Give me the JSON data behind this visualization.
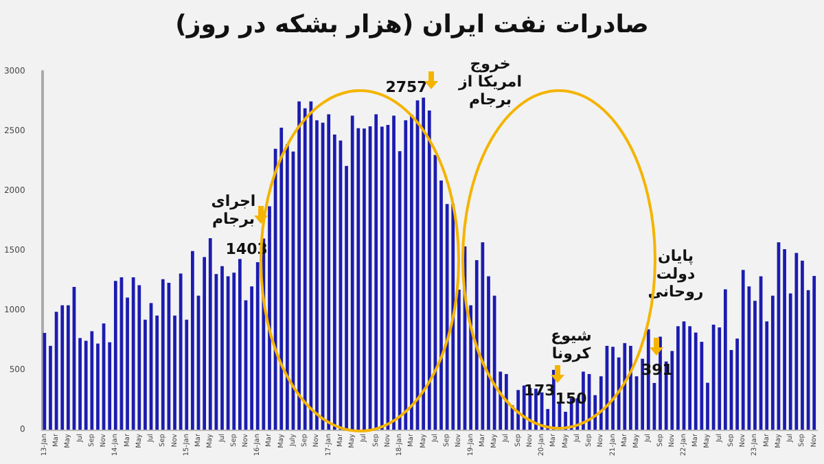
{
  "chart_data": {
    "type": "bar",
    "title": "صادرات نفت ایران (هزار بشکه در روز)",
    "categories": [
      "13-Jan",
      null,
      "Mar",
      null,
      "May",
      null,
      "Jul",
      null,
      "Sep",
      null,
      "Nov",
      null,
      "14-Jan",
      null,
      "Mar",
      null,
      "May",
      null,
      "Jul",
      null,
      "Sep",
      null,
      "Nov",
      null,
      "15-Jan",
      null,
      "Mar",
      null,
      "May",
      null,
      "Jul",
      null,
      "Sep",
      null,
      "Nov",
      null,
      "16-Jan",
      null,
      "Mar",
      null,
      "May",
      null,
      "July",
      null,
      "Sep",
      null,
      "Nov",
      null,
      "17-Jan",
      null,
      "Mar",
      null,
      "May",
      null,
      "Jul",
      null,
      "Sep",
      null,
      "Nov",
      null,
      "18-Jan",
      null,
      "Mar",
      null,
      "May",
      null,
      "Jul",
      null,
      "Sep",
      null,
      "Nov",
      null,
      "19-Jan",
      null,
      "Mar",
      null,
      "May",
      null,
      "Jul",
      null,
      "Sep",
      null,
      "Nov",
      null,
      "20-Jan",
      null,
      "Mar",
      null,
      "May",
      null,
      "Jul",
      null,
      "Sep",
      null,
      "Nov",
      null,
      "21-Jan",
      null,
      "Mar",
      null,
      "May",
      null,
      "Jul",
      null,
      "Sep",
      null,
      "Nov",
      null,
      "22-Jan",
      null,
      "Mar",
      null,
      "May",
      null,
      "Jul",
      null,
      "Sep",
      null,
      "Nov",
      null,
      "23-Jan",
      null,
      "Mar",
      null,
      "May",
      null,
      "Jul",
      null,
      "Sep",
      null,
      "Nov"
    ],
    "values": [
      810,
      702,
      987,
      1041,
      1041,
      1195,
      767,
      744,
      825,
      721,
      890,
      732,
      1245,
      1276,
      1106,
      1276,
      1210,
      921,
      1060,
      956,
      1260,
      1230,
      956,
      1307,
      921,
      1496,
      1122,
      1446,
      1604,
      1303,
      1369,
      1284,
      1315,
      1430,
      1083,
      1199,
      1403,
      1600,
      1870,
      2352,
      2529,
      2390,
      2329,
      2749,
      2691,
      2749,
      2591,
      2571,
      2641,
      2471,
      2421,
      2209,
      2629,
      2525,
      2521,
      2540,
      2641,
      2537,
      2552,
      2629,
      2332,
      2591,
      2637,
      2757,
      2780,
      2672,
      2301,
      2086,
      1889,
      1889,
      1172,
      1534,
      1041,
      1419,
      1569,
      1284,
      1122,
      486,
      466,
      204,
      332,
      370,
      351,
      343,
      312,
      173,
      501,
      231,
      150,
      262,
      262,
      486,
      466,
      289,
      447,
      702,
      694,
      605,
      725,
      702,
      447,
      594,
      840,
      391,
      779,
      571,
      659,
      867,
      906,
      867,
      813,
      736,
      393,
      879,
      856,
      1176,
      667,
      763,
      1338,
      1199,
      1079,
      1284,
      906,
      1122,
      1569,
      1511,
      1141,
      1480,
      1415,
      1168,
      1288
    ],
    "value_labels": [
      null,
      null,
      null,
      null,
      null,
      null,
      null,
      null,
      null,
      null,
      null,
      null,
      null,
      null,
      null,
      null,
      null,
      null,
      null,
      null,
      null,
      null,
      null,
      null,
      null,
      null,
      null,
      null,
      null,
      null,
      null,
      null,
      null,
      null,
      null,
      null,
      "1403",
      null,
      null,
      null,
      null,
      null,
      null,
      null,
      null,
      null,
      null,
      null,
      null,
      null,
      null,
      null,
      null,
      null,
      null,
      null,
      null,
      null,
      null,
      null,
      null,
      null,
      null,
      "2757",
      null,
      null,
      null,
      null,
      null,
      null,
      null,
      null,
      null,
      null,
      null,
      null,
      null,
      null,
      null,
      null,
      null,
      null,
      null,
      null,
      null,
      "173",
      null,
      null,
      "150",
      null,
      null,
      null,
      null,
      null,
      null,
      null,
      null,
      null,
      null,
      null,
      null,
      null,
      null,
      "391",
      null,
      null,
      null,
      null,
      null,
      null,
      null,
      null,
      null,
      null,
      null,
      null,
      null,
      null,
      null,
      null,
      null,
      null,
      null,
      null,
      null,
      null,
      null,
      null,
      null,
      null,
      null
    ],
    "color": "#1c1cb0",
    "ylim": [
      0,
      3000
    ],
    "yticks": [
      0,
      500,
      1000,
      1500,
      2000,
      2500,
      3000
    ],
    "grid": false,
    "annotations": [
      "اجرای برجام",
      "خروج امریکا از برجام",
      "شیوع کرونا",
      "پایان دولت روحانی"
    ]
  }
}
